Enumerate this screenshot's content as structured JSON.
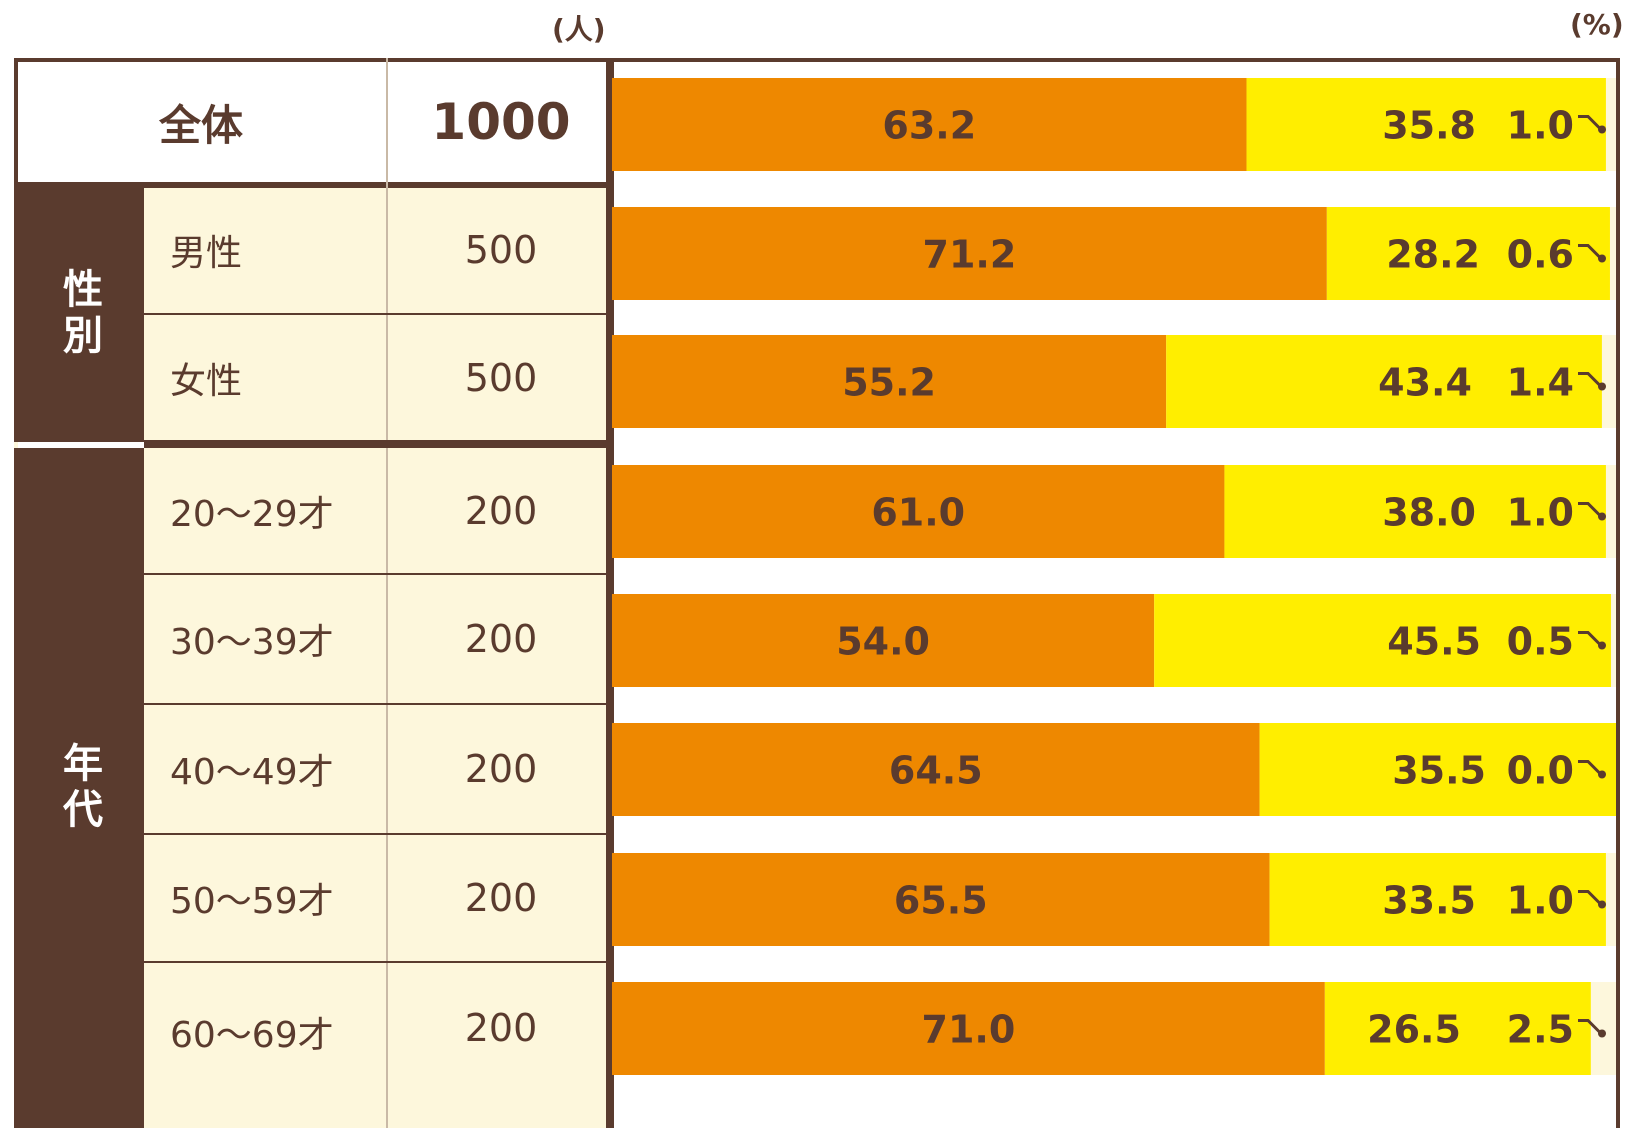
{
  "units": {
    "people": "(人)",
    "percent": "(%)"
  },
  "table": {
    "total": {
      "label": "全体",
      "n": "1000"
    },
    "groups": [
      {
        "label": "性別",
        "rows": [
          {
            "label": "男性",
            "n": "500"
          },
          {
            "label": "女性",
            "n": "500"
          }
        ]
      },
      {
        "label": "年代",
        "rows": [
          {
            "label": "20～29才",
            "n": "200"
          },
          {
            "label": "30～39才",
            "n": "200"
          },
          {
            "label": "40～49才",
            "n": "200"
          },
          {
            "label": "50～59才",
            "n": "200"
          },
          {
            "label": "60～69才",
            "n": "200"
          }
        ]
      }
    ]
  },
  "chart_data": {
    "type": "bar",
    "orientation": "horizontal",
    "stacked": true,
    "categories": [
      "全体",
      "男性",
      "女性",
      "20～29才",
      "30～39才",
      "40～49才",
      "50～59才",
      "60～69才"
    ],
    "series": [
      {
        "values": [
          63.2,
          71.2,
          55.2,
          61.0,
          54.0,
          64.5,
          65.5,
          71.0
        ],
        "labels": [
          "63.2",
          "71.2",
          "55.2",
          "61.0",
          "54.0",
          "64.5",
          "65.5",
          "71.0"
        ]
      },
      {
        "values": [
          35.8,
          28.2,
          43.4,
          38.0,
          45.5,
          35.5,
          33.5,
          26.5
        ],
        "labels": [
          "35.8",
          "28.2",
          "43.4",
          "38.0",
          "45.5",
          "35.5",
          "33.5",
          "26.5"
        ]
      },
      {
        "values": [
          1.0,
          0.6,
          1.4,
          1.0,
          0.5,
          0.0,
          1.0,
          2.5
        ],
        "labels": [
          "1.0",
          "0.6",
          "1.4",
          "1.0",
          "0.5",
          "0.0",
          "1.0",
          "2.5"
        ]
      }
    ],
    "xlim": [
      0,
      100
    ],
    "colors": [
      "#ee8800",
      "#ffee00",
      "#fdf7dc"
    ],
    "label_color": "#5a3b2e"
  }
}
